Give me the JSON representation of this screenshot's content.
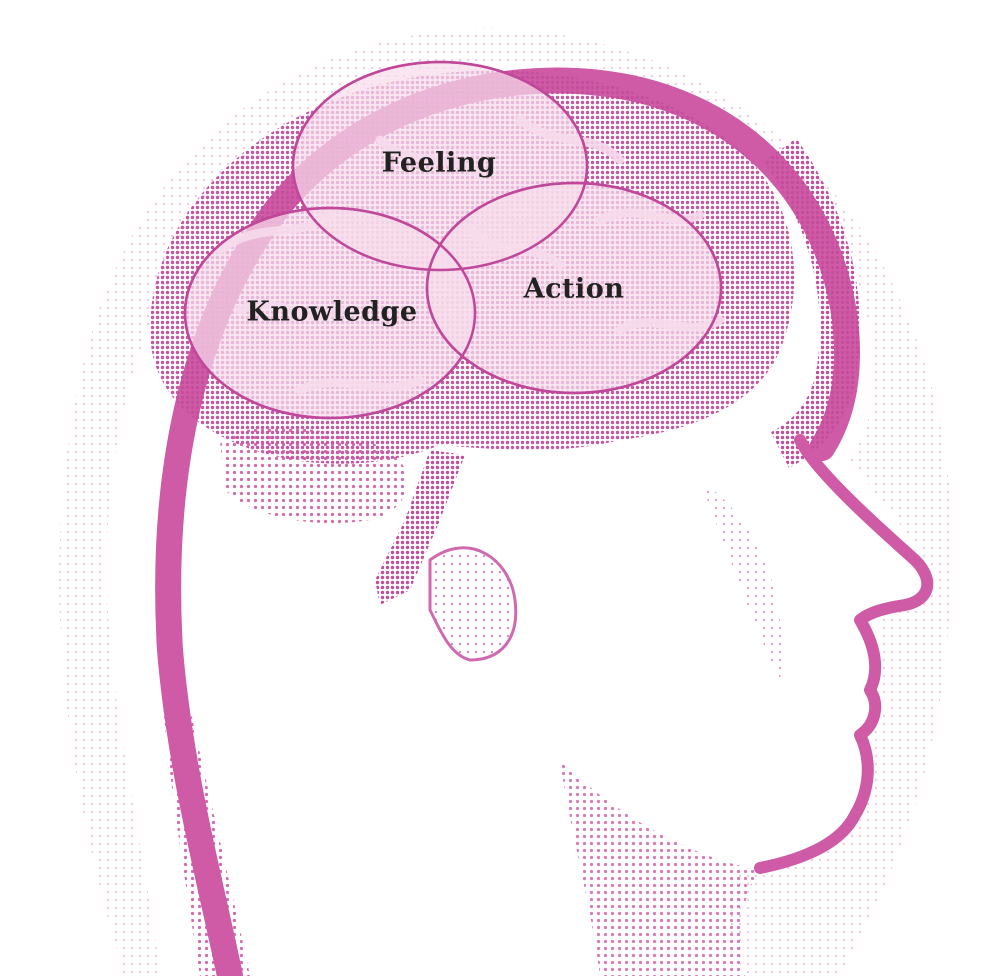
{
  "diagram": {
    "labels": {
      "feeling": "Feeling",
      "action": "Action",
      "knowledge": "Knowledge"
    }
  },
  "colors": {
    "ink": "#cf5aa6",
    "ink_dark": "#b9418f",
    "circle_fill": "#f2d2e6",
    "circle_stroke": "#c0489a",
    "label_text": "#222222",
    "background": "#ffffff"
  }
}
